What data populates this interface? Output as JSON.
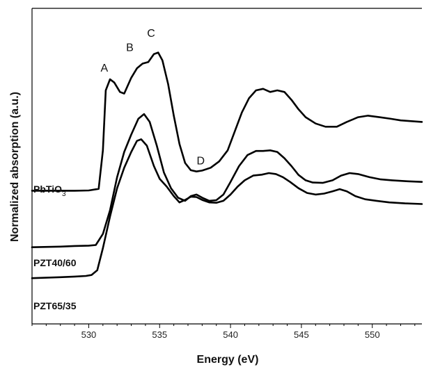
{
  "chart_data": {
    "type": "line",
    "title": "",
    "xlabel": "Energy (eV)",
    "ylabel": "Normalized absorption (a.u.)",
    "xlim": [
      526,
      553.5
    ],
    "ylim": [
      0,
      1
    ],
    "xticks": [
      530,
      535,
      540,
      545,
      550
    ],
    "grid": false,
    "legend": "none",
    "series": [
      {
        "name": "PbTiO",
        "name_subscript": "3",
        "color": "#000000",
        "points": [
          [
            526,
            0.422
          ],
          [
            529,
            0.422
          ],
          [
            530,
            0.423
          ],
          [
            530.7,
            0.428
          ],
          [
            531.0,
            0.55
          ],
          [
            531.2,
            0.74
          ],
          [
            531.5,
            0.775
          ],
          [
            531.8,
            0.765
          ],
          [
            532.2,
            0.735
          ],
          [
            532.5,
            0.73
          ],
          [
            533.0,
            0.78
          ],
          [
            533.4,
            0.81
          ],
          [
            533.8,
            0.825
          ],
          [
            534.2,
            0.83
          ],
          [
            534.6,
            0.855
          ],
          [
            534.9,
            0.86
          ],
          [
            535.2,
            0.835
          ],
          [
            535.6,
            0.76
          ],
          [
            536.0,
            0.66
          ],
          [
            536.4,
            0.57
          ],
          [
            536.8,
            0.51
          ],
          [
            537.2,
            0.487
          ],
          [
            537.6,
            0.483
          ],
          [
            538.0,
            0.486
          ],
          [
            538.6,
            0.495
          ],
          [
            539.2,
            0.515
          ],
          [
            539.8,
            0.55
          ],
          [
            540.3,
            0.61
          ],
          [
            540.8,
            0.67
          ],
          [
            541.3,
            0.715
          ],
          [
            541.8,
            0.74
          ],
          [
            542.3,
            0.745
          ],
          [
            542.8,
            0.735
          ],
          [
            543.3,
            0.74
          ],
          [
            543.8,
            0.735
          ],
          [
            544.3,
            0.71
          ],
          [
            544.8,
            0.68
          ],
          [
            545.3,
            0.655
          ],
          [
            546.0,
            0.635
          ],
          [
            546.7,
            0.625
          ],
          [
            547.5,
            0.625
          ],
          [
            548.2,
            0.64
          ],
          [
            549.0,
            0.655
          ],
          [
            549.7,
            0.66
          ],
          [
            550.5,
            0.655
          ],
          [
            551.3,
            0.65
          ],
          [
            552.0,
            0.645
          ],
          [
            553.5,
            0.64
          ]
        ]
      },
      {
        "name": "PZT40/60",
        "color": "#000000",
        "points": [
          [
            526,
            0.243
          ],
          [
            528,
            0.245
          ],
          [
            529,
            0.247
          ],
          [
            530,
            0.248
          ],
          [
            530.5,
            0.25
          ],
          [
            531.0,
            0.285
          ],
          [
            531.5,
            0.36
          ],
          [
            532.0,
            0.465
          ],
          [
            532.5,
            0.545
          ],
          [
            533.0,
            0.6
          ],
          [
            533.5,
            0.65
          ],
          [
            533.9,
            0.665
          ],
          [
            534.3,
            0.64
          ],
          [
            534.8,
            0.565
          ],
          [
            535.3,
            0.48
          ],
          [
            535.8,
            0.43
          ],
          [
            536.3,
            0.4
          ],
          [
            536.8,
            0.39
          ],
          [
            537.2,
            0.405
          ],
          [
            537.6,
            0.41
          ],
          [
            538.0,
            0.4
          ],
          [
            538.5,
            0.39
          ],
          [
            539.0,
            0.392
          ],
          [
            539.5,
            0.41
          ],
          [
            540.0,
            0.45
          ],
          [
            540.6,
            0.5
          ],
          [
            541.2,
            0.535
          ],
          [
            541.8,
            0.548
          ],
          [
            542.3,
            0.548
          ],
          [
            542.8,
            0.55
          ],
          [
            543.3,
            0.545
          ],
          [
            543.8,
            0.525
          ],
          [
            544.3,
            0.5
          ],
          [
            544.8,
            0.472
          ],
          [
            545.3,
            0.455
          ],
          [
            545.8,
            0.448
          ],
          [
            546.5,
            0.447
          ],
          [
            547.2,
            0.455
          ],
          [
            547.8,
            0.47
          ],
          [
            548.4,
            0.478
          ],
          [
            549.0,
            0.475
          ],
          [
            549.8,
            0.465
          ],
          [
            550.6,
            0.458
          ],
          [
            551.4,
            0.455
          ],
          [
            552.5,
            0.452
          ],
          [
            553.5,
            0.45
          ]
        ]
      },
      {
        "name": "PZT65/35",
        "color": "#000000",
        "points": [
          [
            526,
            0.145
          ],
          [
            528,
            0.148
          ],
          [
            529,
            0.15
          ],
          [
            529.8,
            0.152
          ],
          [
            530.2,
            0.155
          ],
          [
            530.6,
            0.17
          ],
          [
            531.0,
            0.24
          ],
          [
            531.5,
            0.34
          ],
          [
            532.0,
            0.43
          ],
          [
            532.5,
            0.495
          ],
          [
            533.0,
            0.545
          ],
          [
            533.4,
            0.58
          ],
          [
            533.7,
            0.585
          ],
          [
            534.1,
            0.565
          ],
          [
            534.6,
            0.5
          ],
          [
            535.0,
            0.46
          ],
          [
            535.5,
            0.435
          ],
          [
            536.0,
            0.405
          ],
          [
            536.4,
            0.385
          ],
          [
            536.8,
            0.393
          ],
          [
            537.2,
            0.403
          ],
          [
            537.6,
            0.402
          ],
          [
            538.0,
            0.393
          ],
          [
            538.5,
            0.385
          ],
          [
            539.0,
            0.384
          ],
          [
            539.5,
            0.39
          ],
          [
            540.0,
            0.41
          ],
          [
            540.5,
            0.435
          ],
          [
            541.0,
            0.455
          ],
          [
            541.6,
            0.47
          ],
          [
            542.2,
            0.473
          ],
          [
            542.7,
            0.478
          ],
          [
            543.2,
            0.475
          ],
          [
            543.7,
            0.465
          ],
          [
            544.2,
            0.45
          ],
          [
            544.8,
            0.43
          ],
          [
            545.4,
            0.415
          ],
          [
            546.0,
            0.41
          ],
          [
            546.6,
            0.413
          ],
          [
            547.2,
            0.42
          ],
          [
            547.7,
            0.427
          ],
          [
            548.2,
            0.42
          ],
          [
            548.8,
            0.405
          ],
          [
            549.5,
            0.395
          ],
          [
            550.3,
            0.39
          ],
          [
            551.2,
            0.385
          ],
          [
            552.3,
            0.382
          ],
          [
            553.5,
            0.38
          ]
        ]
      }
    ],
    "annotations": [
      {
        "text": "A",
        "x": 531.1,
        "y": 0.8
      },
      {
        "text": "B",
        "x": 532.9,
        "y": 0.865
      },
      {
        "text": "C",
        "x": 534.4,
        "y": 0.91
      },
      {
        "text": "D",
        "x": 537.9,
        "y": 0.505
      }
    ]
  }
}
